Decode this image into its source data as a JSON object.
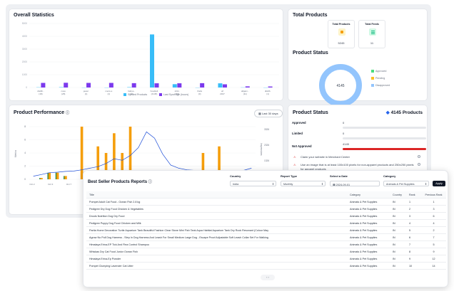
{
  "overall": {
    "title": "Overall Statistics",
    "legend": [
      "Synced Products",
      "Last Sync Age (hours)"
    ],
    "y_ticks": [
      "5000",
      "4000",
      "3000",
      "2000",
      "1000",
      "0"
    ],
    "chart_data": {
      "type": "bar",
      "categories": [
        "distilb.. (18)",
        "cosu (28)",
        "jewer (1)",
        "mens-s (1)",
        "babys.. (28)",
        "hoodie3 (4145)",
        "shirs (260)",
        "thefa (0)",
        "url 2327",
        "allgam.. (11)",
        "distilb. (1)"
      ],
      "series": [
        {
          "name": "Synced Products",
          "values": [
            18,
            28,
            1,
            1,
            28,
            4145,
            260,
            0,
            327,
            11,
            1
          ]
        },
        {
          "name": "Last Sync Age (hours)",
          "values": [
            360,
            370,
            360,
            360,
            340,
            330,
            330,
            340,
            250,
            90,
            80
          ]
        }
      ],
      "ylim": [
        0,
        5000
      ]
    }
  },
  "total_products": {
    "title": "Total Products",
    "products_label": "Total Products",
    "products_value": "5245",
    "feeds_label": "Total Feeds",
    "feeds_value": "11"
  },
  "product_status_donut": {
    "title": "Product Status",
    "center_value": "4145",
    "legend": [
      "Approved",
      "Pending",
      "Disapproved"
    ],
    "colors": [
      "#4ade80",
      "#fbbf24",
      "#93c5fd"
    ],
    "chart_data": {
      "type": "pie",
      "categories": [
        "Approved",
        "Pending",
        "Disapproved"
      ],
      "values": [
        0,
        0,
        4145
      ]
    }
  },
  "performance": {
    "title": "Product Performance",
    "period_button": "Last 30 days",
    "left_axis_label": "Metrics",
    "right_axis_label": "Impressions",
    "left_ticks": [
      "8",
      "6",
      "4",
      "2",
      "0"
    ],
    "right_ticks": [
      "3326",
      "2326",
      "1326",
      "326"
    ],
    "x_labels": [
      "Oct 2",
      "Oct 3",
      "Oct 7",
      "Oct 11",
      "Oct 13",
      "Oct 15",
      "Oct 17",
      "Oct 19",
      "Oct 21",
      "Oct 23",
      "Oct 25",
      "Oct 27",
      "Oct 29"
    ],
    "chart_data": {
      "type": "bar",
      "series": [
        {
          "name": "Clicks",
          "values": [
            0,
            0.2,
            1,
            1,
            0.5,
            0,
            8,
            0,
            5,
            4,
            7,
            4,
            8,
            1,
            0,
            0,
            0,
            1,
            0.5,
            0,
            0,
            4,
            0,
            5,
            0,
            0,
            0,
            0
          ]
        },
        {
          "name": "Impressions",
          "values": [
            200,
            300,
            420,
            450,
            500,
            520,
            600,
            700,
            800,
            1000,
            1300,
            1200,
            1500,
            2000,
            3000,
            2600,
            1600,
            900,
            700,
            600,
            560,
            560,
            560,
            560,
            560,
            560,
            560,
            700
          ]
        }
      ]
    }
  },
  "status_panel": {
    "title": "Product Status",
    "total": "4145 Products",
    "rows": [
      {
        "name": "Approved",
        "value": "0",
        "fill": 0
      },
      {
        "name": "Limited",
        "value": "0",
        "fill": 0
      },
      {
        "name": "Not Approved",
        "value": "4145",
        "fill": 1
      }
    ],
    "notes": [
      "Claim your website in Merchant Center",
      "Use an image that is at least 100x100 pixels for non-apparel products and 250x250 pixels for apparel products"
    ]
  },
  "report": {
    "title": "Best Seller Products Reports",
    "filters": {
      "country_label": "Country",
      "country_value": "India",
      "report_label": "Report Type",
      "report_value": "Monthly",
      "date_label": "Select a Date",
      "date_value": "2024-09-01",
      "category_label": "Category",
      "category_value": "Animals & Pet Supplies"
    },
    "apply_label": "Apply",
    "headers": [
      "Title",
      "Category",
      "Country",
      "Rank",
      "Previous Rank"
    ],
    "rows": [
      [
        "Pompet Adult Cat Food - Ocean Fish 2.8 kg",
        "Animals & Pet Supplies",
        "IN",
        "1",
        "1"
      ],
      [
        "Pedigree Dry Dog Food Chicken & Vegetables",
        "Animals & Pet Supplies",
        "IN",
        "2",
        "3"
      ],
      [
        "Drools Nutrition Dog Dry Food",
        "Animals & Pet Supplies",
        "IN",
        "3",
        "6"
      ],
      [
        "Pedigree Puppy Dog Food Chicken and Milk",
        "Animals & Pet Supplies",
        "IN",
        "4",
        "4"
      ],
      [
        "Partia Home Decoration Turtle Aquarium Tank Beautiful Fashion Clear Stone Mini Fish Tank Aqua Habitat Aquarium Tank Dry Rock Resonant (Colour May",
        "Animals & Pet Supplies",
        "IN",
        "5",
        "2"
      ],
      [
        "Agrow No Pull Dog Harness - Step In Dog Harness And Leash For Small Medium Large Dog - Escape Proof Adjustable Soft Leash Collar Set For Walking",
        "Animals & Pet Supplies",
        "IN",
        "6",
        "7"
      ],
      [
        "Himalaya Erina-EP Tick And Flea Control Shampoo",
        "Animals & Pet Supplies",
        "IN",
        "7",
        "5"
      ],
      [
        "Whiskas Dry Cat Food Junior Ocean Fish",
        "Animals & Pet Supplies",
        "IN",
        "8",
        "9"
      ],
      [
        "Himalaya Erina-Ep Powder",
        "Animals & Pet Supplies",
        "IN",
        "9",
        "12"
      ],
      [
        "Pompet Clumping Lavender Cat Litter",
        "Animals & Pet Supplies",
        "IN",
        "10",
        "14"
      ]
    ],
    "pager": "‹ ›"
  }
}
